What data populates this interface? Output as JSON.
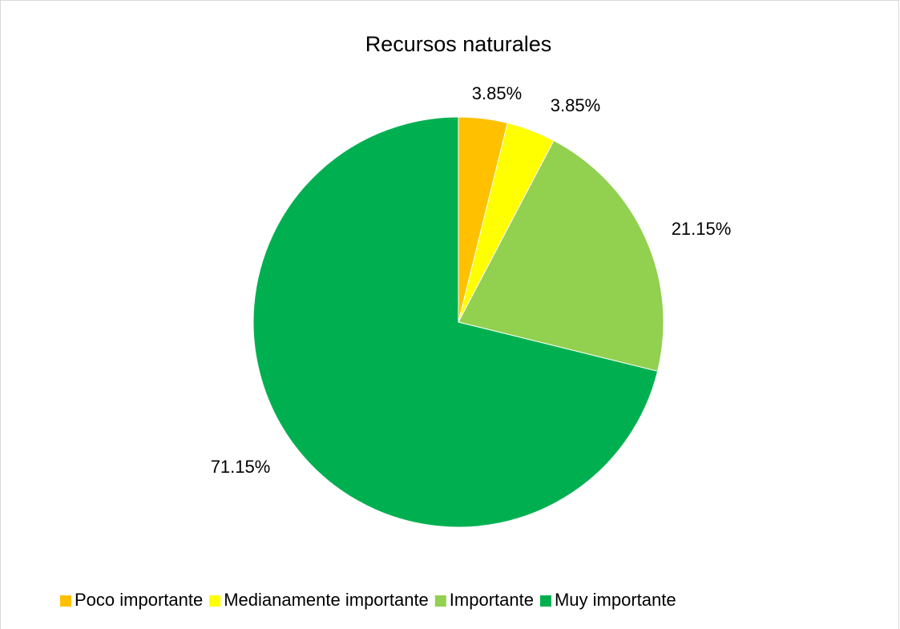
{
  "chart_data": {
    "type": "pie",
    "title": "Recursos naturales",
    "categories": [
      "Poco importante",
      "Medianamente importante",
      "Importante",
      "Muy importante"
    ],
    "values": [
      3.85,
      3.85,
      21.15,
      71.15
    ],
    "value_labels": [
      "3.85%",
      "3.85%",
      "21.15%",
      "71.15%"
    ],
    "colors": [
      "#ffc000",
      "#ffff00",
      "#92d050",
      "#00b050"
    ],
    "legend": "bottom"
  }
}
